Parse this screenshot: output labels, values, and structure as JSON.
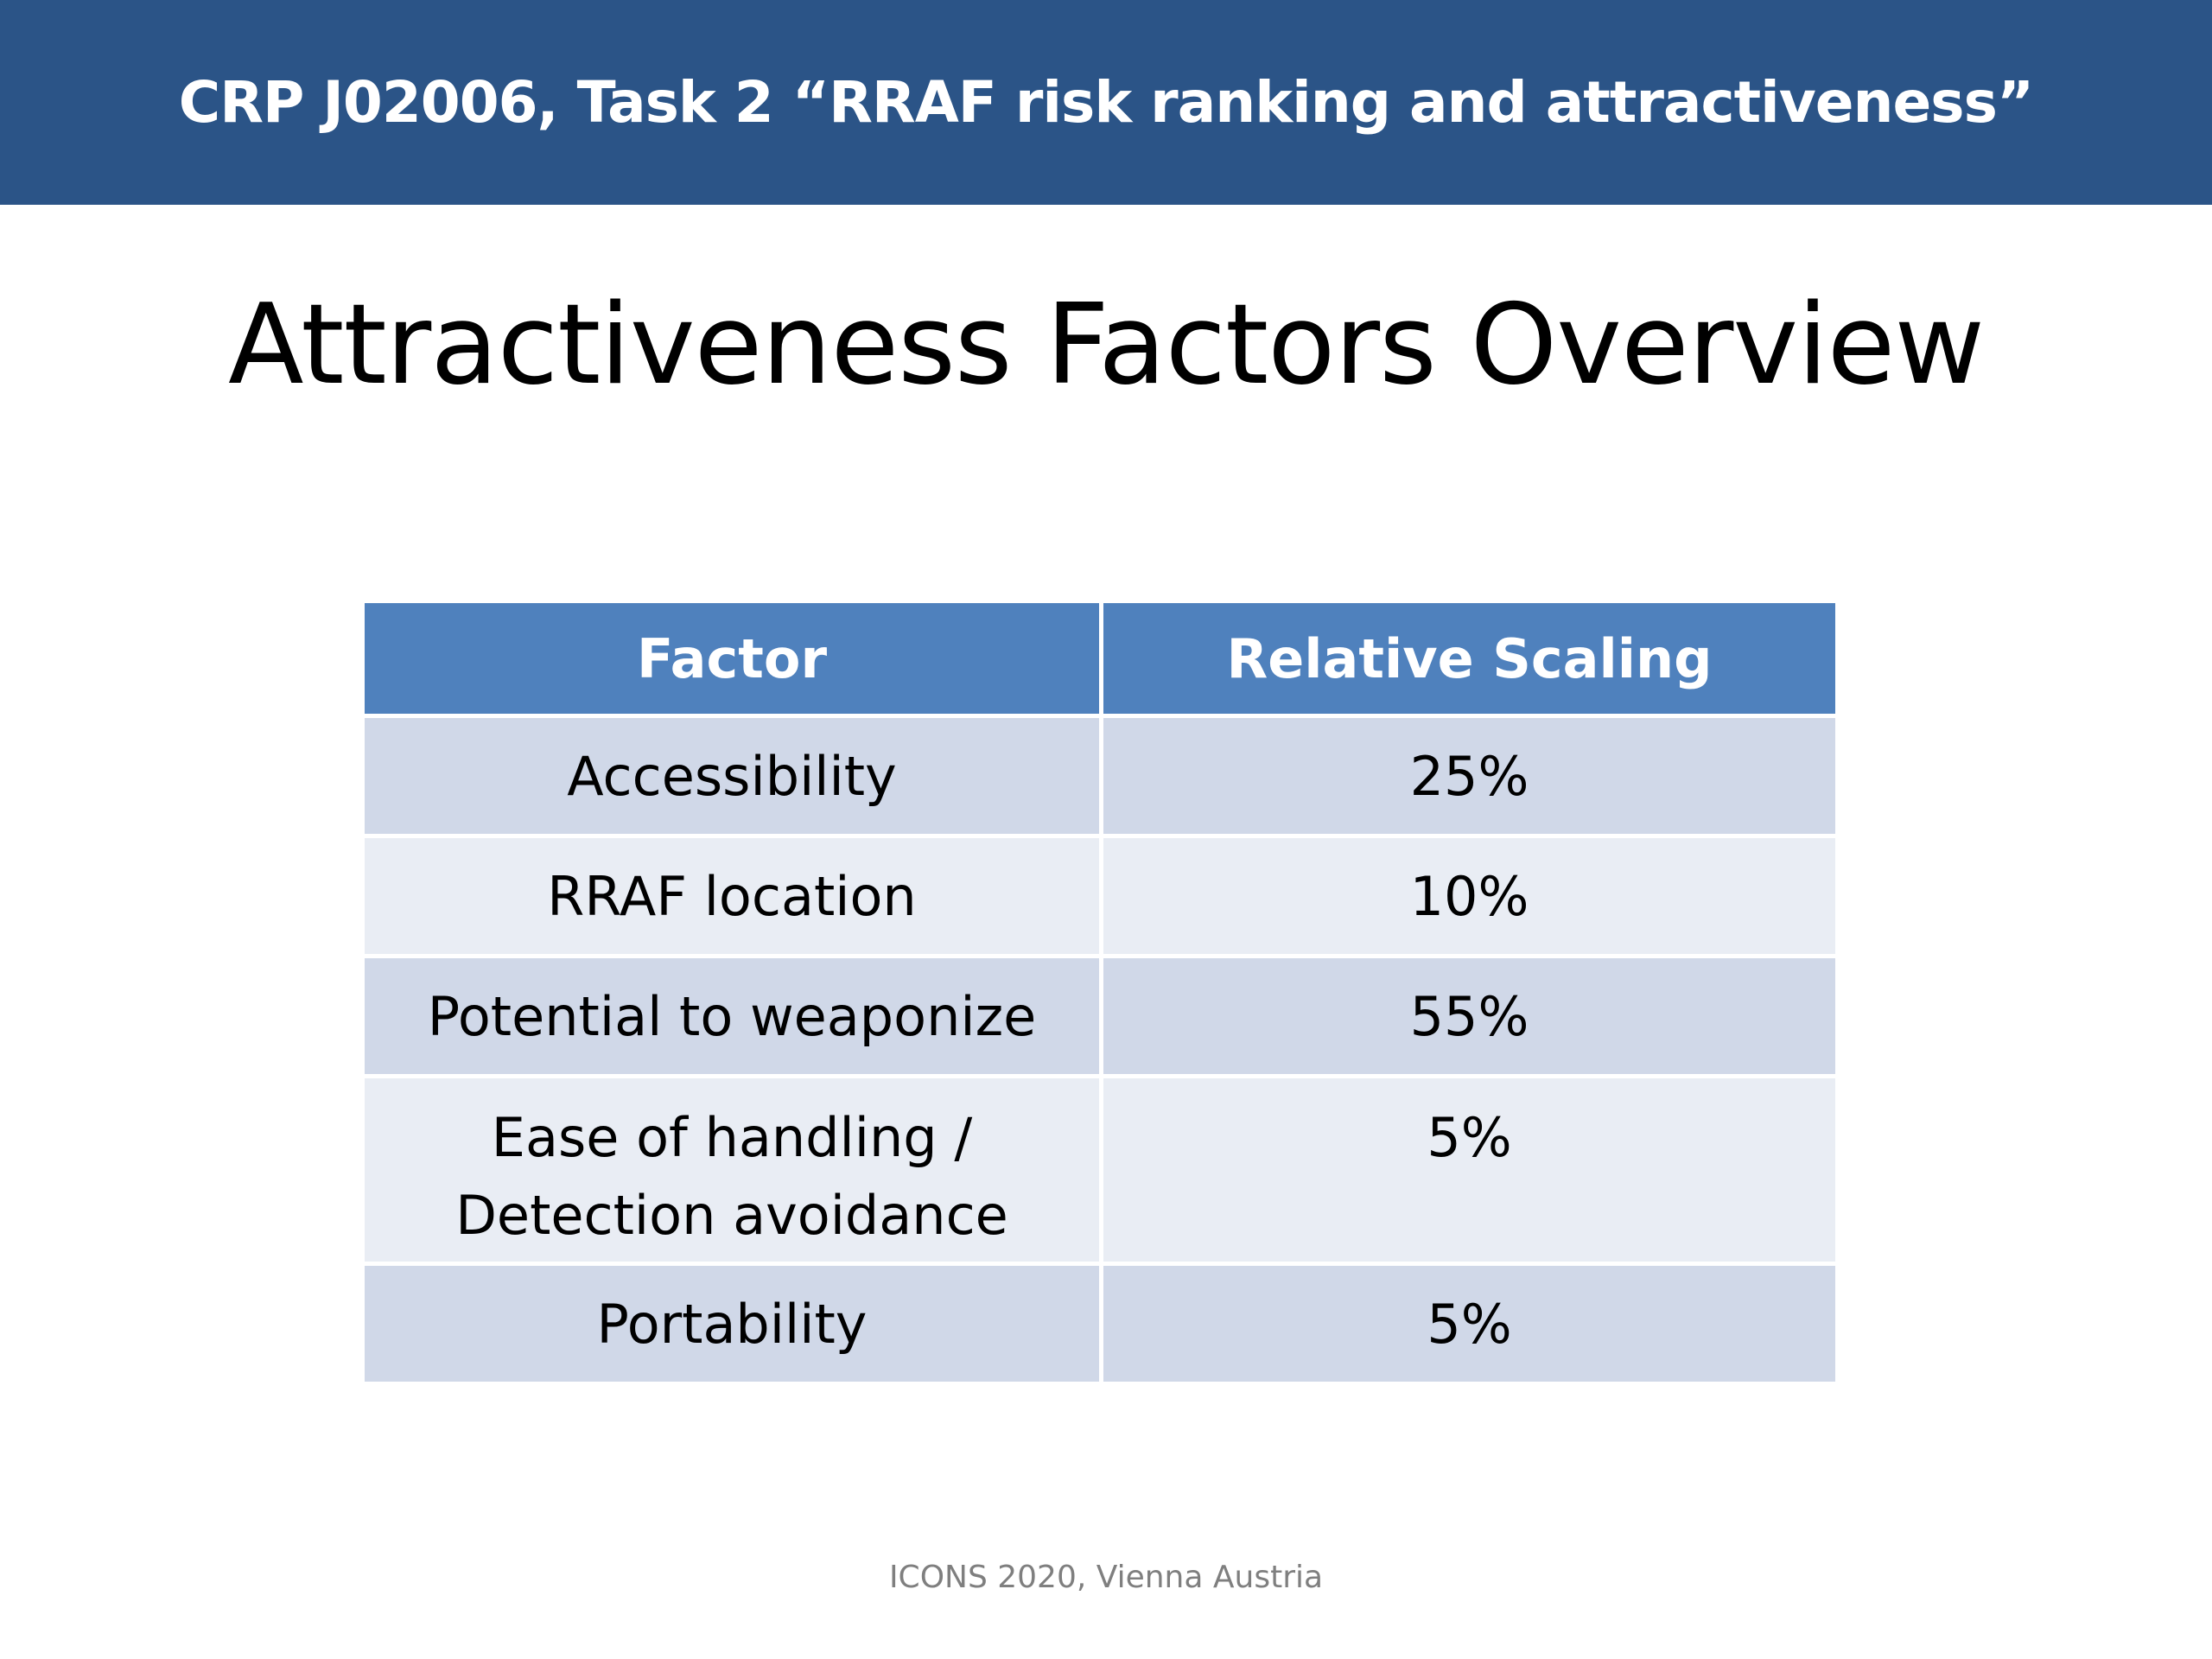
{
  "header": {
    "banner": "CRP J02006, Task 2 “RRAF risk ranking and attractiveness”"
  },
  "slide": {
    "title": "Attractiveness Factors Overview"
  },
  "table": {
    "columns": [
      "Factor",
      "Relative Scaling"
    ],
    "rows": [
      {
        "factor": "Accessibility",
        "scaling": "25%"
      },
      {
        "factor": "RRAF location",
        "scaling": "10%"
      },
      {
        "factor": "Potential to weaponize",
        "scaling": "55%"
      },
      {
        "factor_line1": "Ease of handling /",
        "factor_line2": "Detection avoidance",
        "scaling": "5%"
      },
      {
        "factor": "Portability",
        "scaling": "5%"
      }
    ]
  },
  "footer": {
    "text": "ICONS 2020, Vienna Austria"
  },
  "colors": {
    "banner": "#2b5487",
    "table_header": "#4f81bd",
    "row_dark": "#d0d8e8",
    "row_light": "#e9edf4"
  }
}
